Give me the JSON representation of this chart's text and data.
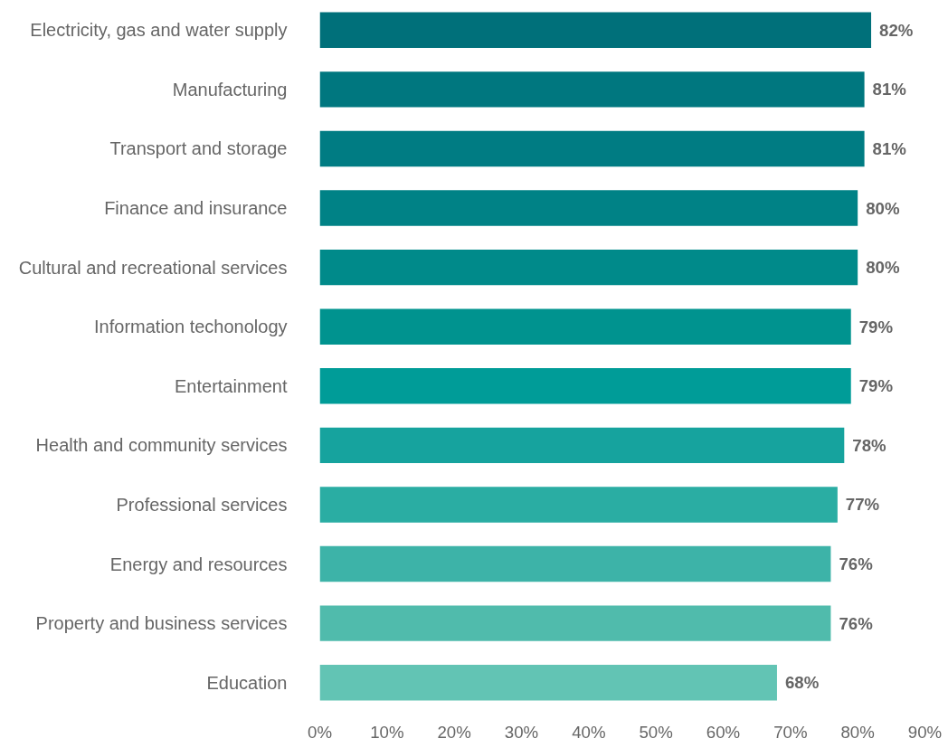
{
  "chart_data": {
    "type": "bar",
    "orientation": "horizontal",
    "categories": [
      "Electricity, gas and water supply",
      "Manufacturing",
      "Transport and storage",
      "Finance and insurance",
      "Cultural and recreational services",
      "Information techonology",
      "Entertainment",
      "Health and community services",
      "Professional services",
      "Energy and resources",
      "Property and business services",
      "Education"
    ],
    "values": [
      82,
      81,
      81,
      80,
      80,
      79,
      79,
      78,
      77,
      76,
      76,
      68
    ],
    "colors": [
      "#00707a",
      "#00777f",
      "#007c83",
      "#008286",
      "#008a8a",
      "#00938f",
      "#009c98",
      "#16a39e",
      "#2aada3",
      "#3db3a8",
      "#50bbac",
      "#62c4b4"
    ],
    "xlim": [
      0,
      90
    ],
    "xticks": [
      {
        "value": 0,
        "label": "0%"
      },
      {
        "value": 10,
        "label": "10%"
      },
      {
        "value": 20,
        "label": "20%"
      },
      {
        "value": 30,
        "label": "30%"
      },
      {
        "value": 40,
        "label": "40%"
      },
      {
        "value": 50,
        "label": "50%"
      },
      {
        "value": 60,
        "label": "60%"
      },
      {
        "value": 70,
        "label": "70%"
      },
      {
        "value": 80,
        "label": "80%"
      },
      {
        "value": 90,
        "label": "90%"
      }
    ],
    "value_labels": [
      "82%",
      "81%",
      "81%",
      "80%",
      "80%",
      "79%",
      "79%",
      "78%",
      "77%",
      "76%",
      "76%",
      "68%"
    ],
    "grid": false
  }
}
